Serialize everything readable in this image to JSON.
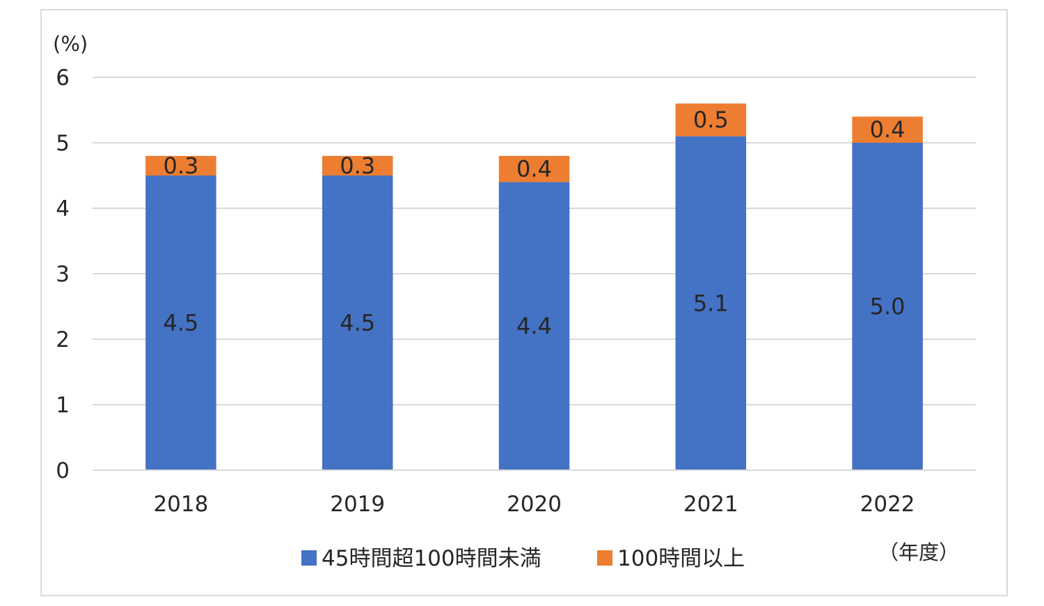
{
  "chart_data": {
    "type": "bar",
    "stacked": true,
    "categories": [
      "2018",
      "2019",
      "2020",
      "2021",
      "2022"
    ],
    "series": [
      {
        "name": "45時間超100時間未満",
        "values": [
          4.5,
          4.5,
          4.4,
          5.1,
          5.0
        ],
        "color": "#4472c4",
        "labels": [
          "4.5",
          "4.5",
          "4.4",
          "5.1",
          "5.0"
        ]
      },
      {
        "name": "100時間以上",
        "values": [
          0.3,
          0.3,
          0.4,
          0.5,
          0.4
        ],
        "color": "#ed7d31",
        "labels": [
          "0.3",
          "0.3",
          "0.4",
          "0.5",
          "0.4"
        ]
      }
    ],
    "y_unit": "(%)",
    "x_unit": "（年度）",
    "ylim": [
      0,
      6
    ],
    "yticks": [
      "0",
      "1",
      "2",
      "3",
      "4",
      "5",
      "6"
    ],
    "grid": true,
    "gridline_color": "#d9d9d9",
    "legend_position": "bottom"
  }
}
